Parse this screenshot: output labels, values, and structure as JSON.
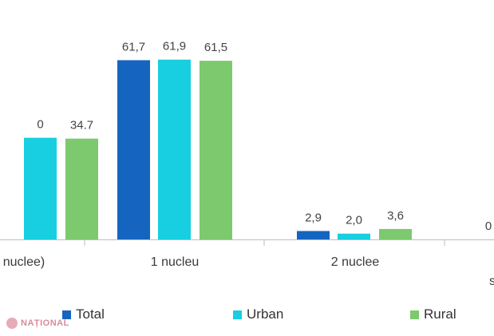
{
  "chart_data": {
    "type": "bar",
    "categories": [
      "nuclee)",
      "1 nucleu",
      "2 nuclee",
      "s"
    ],
    "series": [
      {
        "name": "Total",
        "color": "#1565c0",
        "values": [
          null,
          61.7,
          2.9,
          null
        ]
      },
      {
        "name": "Urban",
        "color": "#17cfe0",
        "values": [
          35.0,
          61.9,
          2.0,
          null
        ]
      },
      {
        "name": "Rural",
        "color": "#7dc96e",
        "values": [
          34.7,
          61.5,
          3.6,
          null
        ]
      }
    ],
    "data_labels": [
      [
        "",
        "0",
        "34.7"
      ],
      [
        "61,7",
        "61,9",
        "61,5"
      ],
      [
        "2,9",
        "2,0",
        "3,6"
      ],
      [
        "0",
        "",
        ""
      ]
    ],
    "ylim": [
      0,
      70
    ],
    "grid": false,
    "legend_position": "bottom"
  },
  "watermark": "NAȚIONAL"
}
